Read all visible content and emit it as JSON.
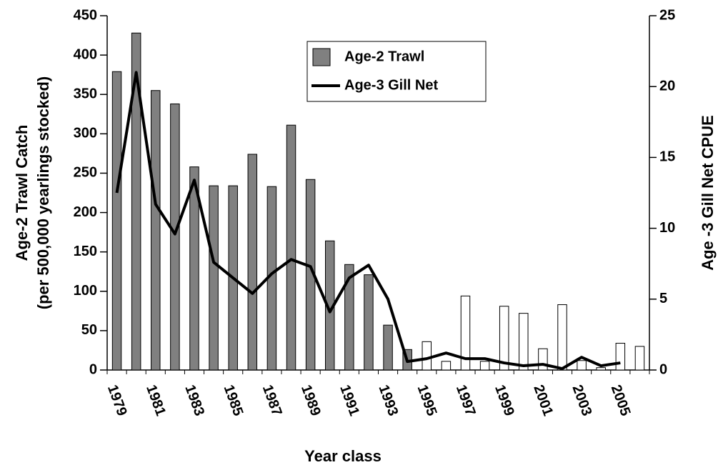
{
  "chart_data": {
    "type": "bar_line",
    "x_label": "Year class",
    "y_label": [
      "Age-2 Trawl Catch",
      "(per 500,000 yearlings stocked)"
    ],
    "y2_label": "Age -3 Gill Net CPUE",
    "categories": [
      "1979",
      null,
      "1981",
      null,
      "1983",
      null,
      "1985",
      null,
      "1987",
      null,
      "1989",
      null,
      "1991",
      null,
      "1993",
      null,
      "1995",
      null,
      "1997",
      null,
      "1999",
      null,
      "2001",
      null,
      "2003",
      null,
      "2005",
      null
    ],
    "series": [
      {
        "name": "Age-2 Trawl",
        "type": "bar",
        "color": "#808080",
        "colors": [
          "#808080",
          "#808080",
          "#808080",
          "#808080",
          "#808080",
          "#808080",
          "#808080",
          "#808080",
          "#808080",
          "#808080",
          "#808080",
          "#808080",
          "#808080",
          "#808080",
          "#808080",
          "#808080",
          "#ffffff",
          "#ffffff",
          "#ffffff",
          "#ffffff",
          "#ffffff",
          "#ffffff",
          "#ffffff",
          "#ffffff",
          "#ffffff",
          "#ffffff",
          "#ffffff",
          "#ffffff"
        ],
        "values": [
          379,
          428,
          355,
          338,
          258,
          234,
          234,
          274,
          233,
          311,
          242,
          164,
          134,
          121,
          57,
          26,
          36,
          11,
          94,
          11,
          81,
          72,
          27,
          83,
          12,
          3,
          34,
          30
        ]
      },
      {
        "name": "Age-3 Gill Net",
        "type": "line",
        "axis": "y2",
        "color": "#000000",
        "values": [
          12.5,
          21,
          11.7,
          9.6,
          13.4,
          7.6,
          6.5,
          5.4,
          6.8,
          7.8,
          7.3,
          4.1,
          6.5,
          7.4,
          5.0,
          0.6,
          0.8,
          1.2,
          0.8,
          0.8,
          0.5,
          0.3,
          0.4,
          0.1,
          0.9,
          0.3,
          0.5,
          null
        ]
      }
    ],
    "ylim": [
      0,
      450
    ],
    "yticks": [
      0,
      50,
      100,
      150,
      200,
      250,
      300,
      350,
      400,
      450
    ],
    "y2lim": [
      0,
      25
    ],
    "y2ticks": [
      0,
      5,
      10,
      15,
      20,
      25
    ],
    "legend": "top"
  }
}
